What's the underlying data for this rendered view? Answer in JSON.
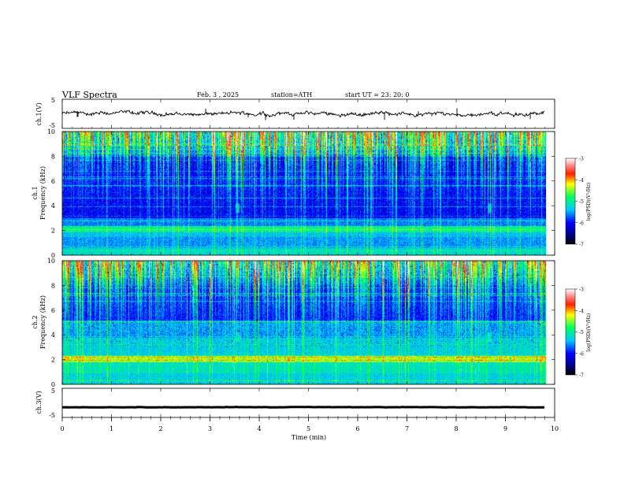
{
  "header": {
    "title": "VLF  Spectra",
    "date": "Feb. 3   , 2025",
    "station": "station=ATH",
    "start": "start  UT  =    23: 20: 0"
  },
  "chart_data": [
    {
      "type": "line",
      "ylabel": "ch.1(V)",
      "ylim": [
        -5,
        5
      ],
      "yticks": [
        "5",
        "-5"
      ],
      "x_range_min": [
        0,
        9.8
      ],
      "description_value_level": 0
    },
    {
      "type": "heatmap",
      "ylabel_top": "ch.1",
      "ylabel": "Frequency  (kHz)",
      "ylim": [
        0,
        10
      ],
      "yticks": [
        "0",
        "2",
        "4",
        "6",
        "8",
        "10"
      ],
      "colorbar": {
        "label": "log(PSD)(V²/Hz)",
        "range": [
          -7,
          -3
        ],
        "ticks": [
          "-3",
          "-4",
          "-5",
          "-6",
          "-7"
        ]
      }
    },
    {
      "type": "heatmap",
      "ylabel_top": "ch.2",
      "ylabel": "Frequency  (kHz)",
      "ylim": [
        0,
        10
      ],
      "yticks": [
        "0",
        "2",
        "4",
        "6",
        "8",
        "10"
      ],
      "colorbar": {
        "label": "log(PSD)(V²/Hz)",
        "range": [
          -7,
          -3
        ],
        "ticks": [
          "-3",
          "-4",
          "-5",
          "-6",
          "-7"
        ]
      }
    },
    {
      "type": "line",
      "ylabel": "ch.3(V)",
      "ylim": [
        -5,
        5
      ],
      "yticks": [
        "5",
        "-5"
      ],
      "x_range_min": [
        0,
        9.8
      ],
      "description_value_level": -1.5
    }
  ],
  "xaxis": {
    "xlabel": "Time  (min)",
    "xlim": [
      0,
      10
    ],
    "ticks": [
      "0",
      "1",
      "2",
      "3",
      "4",
      "5",
      "6",
      "7",
      "8",
      "9",
      "10"
    ]
  }
}
